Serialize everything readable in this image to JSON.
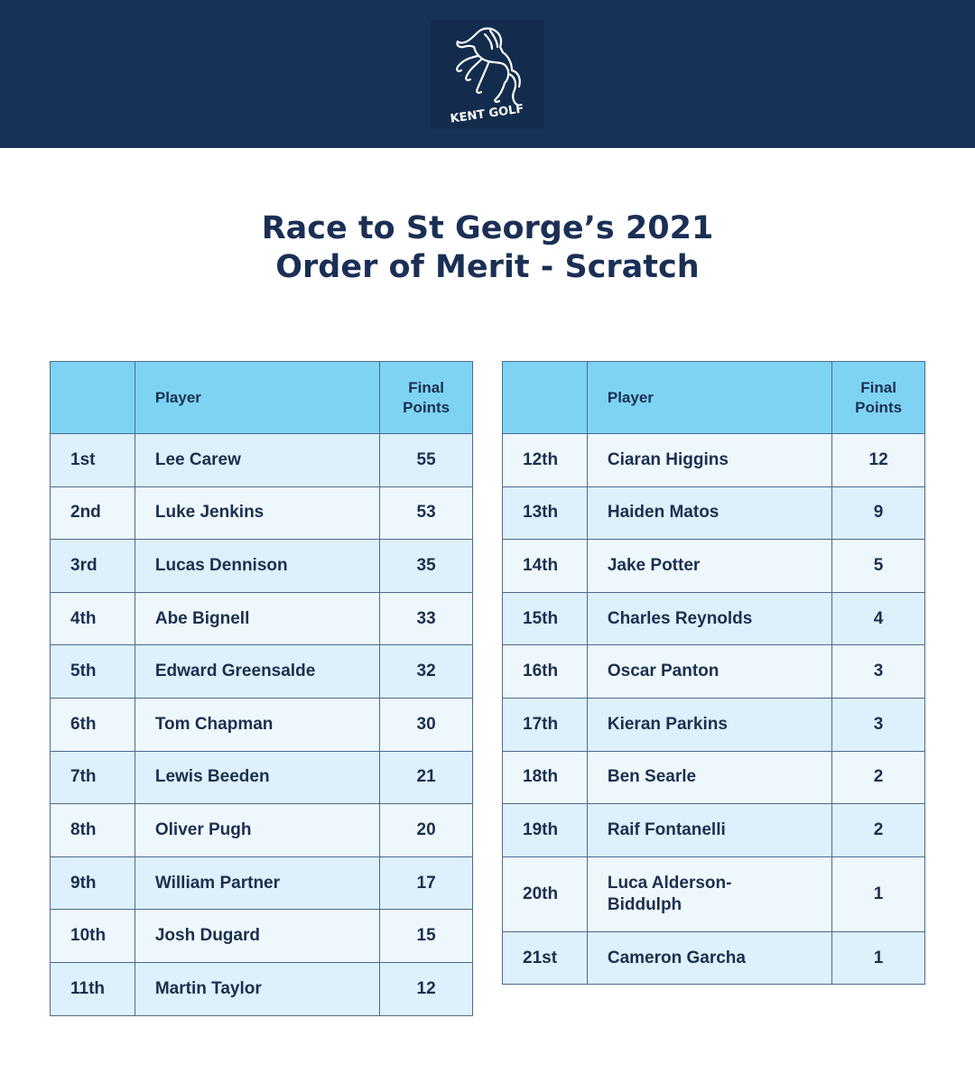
{
  "header": {
    "logo_text": "KENT GOLF",
    "background_color": "#163257"
  },
  "title": {
    "line1": "Race to St George’s 2021",
    "line2": "Order of Merit - Scratch"
  },
  "table_headers": {
    "position": "",
    "player": "Player",
    "points_line1": "Final",
    "points_line2": "Points"
  },
  "left_table": {
    "rows": [
      {
        "position": "1st",
        "player": "Lee Carew",
        "points": "55"
      },
      {
        "position": "2nd",
        "player": "Luke Jenkins",
        "points": "53"
      },
      {
        "position": "3rd",
        "player": "Lucas Dennison",
        "points": "35"
      },
      {
        "position": "4th",
        "player": "Abe Bignell",
        "points": "33"
      },
      {
        "position": "5th",
        "player": "Edward Greensalde",
        "points": "32"
      },
      {
        "position": "6th",
        "player": "Tom Chapman",
        "points": "30"
      },
      {
        "position": "7th",
        "player": "Lewis Beeden",
        "points": "21"
      },
      {
        "position": "8th",
        "player": "Oliver Pugh",
        "points": "20"
      },
      {
        "position": "9th",
        "player": "William Partner",
        "points": "17"
      },
      {
        "position": "10th",
        "player": "Josh Dugard",
        "points": "15"
      },
      {
        "position": "11th",
        "player": "Martin Taylor",
        "points": "12"
      }
    ]
  },
  "right_table": {
    "rows": [
      {
        "position": "12th",
        "player": "Ciaran Higgins",
        "points": "12"
      },
      {
        "position": "13th",
        "player": "Haiden Matos",
        "points": "9"
      },
      {
        "position": "14th",
        "player": "Jake Potter",
        "points": "5"
      },
      {
        "position": "15th",
        "player": "Charles Reynolds",
        "points": "4"
      },
      {
        "position": "16th",
        "player": "Oscar Panton",
        "points": "3"
      },
      {
        "position": "17th",
        "player": "Kieran Parkins",
        "points": "3"
      },
      {
        "position": "18th",
        "player": "Ben Searle",
        "points": "2"
      },
      {
        "position": "19th",
        "player": "Raif Fontanelli",
        "points": "2"
      },
      {
        "position": "20th",
        "player_line1": "Luca Alderson-",
        "player_line2": "Biddulph",
        "points": "1"
      },
      {
        "position": "21st",
        "player": "Cameron Garcha",
        "points": "1"
      }
    ]
  },
  "colors": {
    "header_bg": "#163257",
    "table_header_bg": "#7ed3f3",
    "row_odd_bg": "#ddf0fb",
    "row_even_bg": "#eef7fc",
    "text": "#1b2f4f"
  }
}
